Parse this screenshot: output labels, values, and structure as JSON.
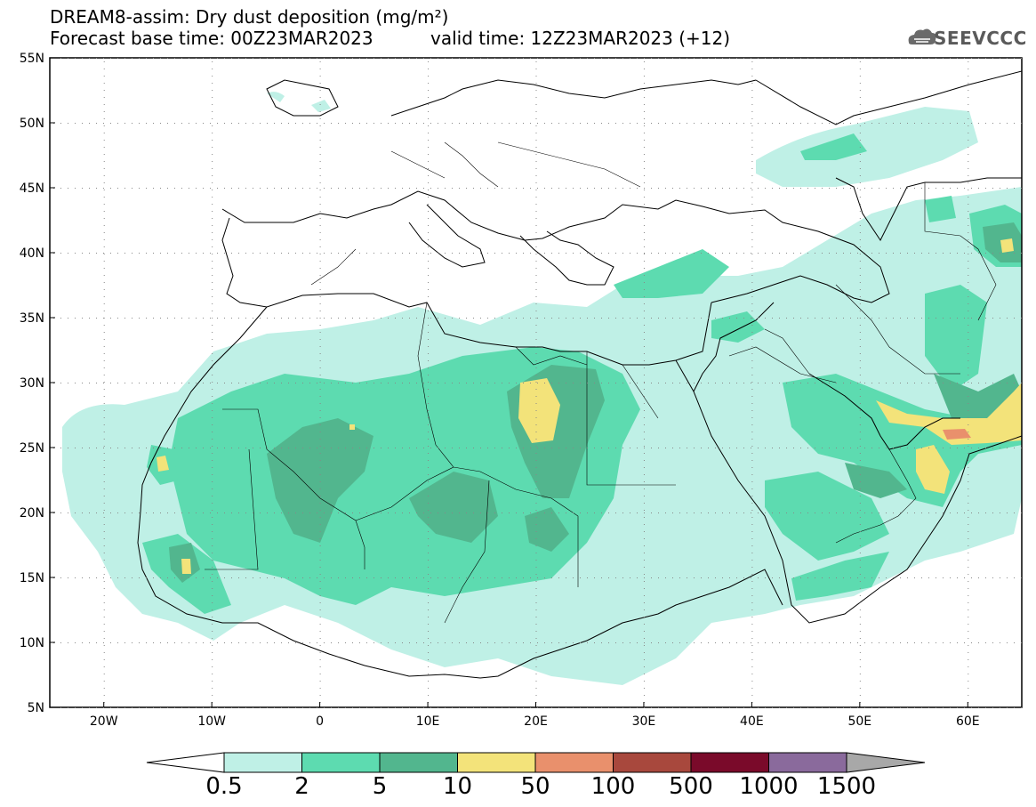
{
  "header": {
    "title": "DREAM8-assim: Dry dust deposition (mg/m²)",
    "base_time": "Forecast base time: 00Z23MAR2023",
    "valid_time": "valid time: 12Z23MAR2023 (+12)",
    "logo_text": "SEEVCCC"
  },
  "map": {
    "lon_ticks": [
      "20W",
      "10W",
      "0",
      "10E",
      "20E",
      "30E",
      "40E",
      "50E",
      "60E"
    ],
    "lat_ticks": [
      "55N",
      "50N",
      "45N",
      "40N",
      "35N",
      "30N",
      "25N",
      "20N",
      "15N",
      "10N",
      "5N"
    ],
    "extent": {
      "lon": [
        -25,
        65
      ],
      "lat": [
        5,
        55
      ]
    }
  },
  "colorbar": {
    "labels": [
      "0.5",
      "2",
      "5",
      "10",
      "50",
      "100",
      "500",
      "1000",
      "1500"
    ],
    "colors": [
      "#bff0e6",
      "#5ddbb0",
      "#52b68e",
      "#f3e37a",
      "#e9906c",
      "#a8483d",
      "#7a0a2a",
      "#8a6a9c"
    ],
    "arrow_low_color": "#ffffff",
    "arrow_high_color": "#a8a8a8"
  },
  "chart_data": {
    "type": "heatmap",
    "title": "DREAM8-assim: Dry dust deposition (mg/m²)",
    "units": "mg/m²",
    "levels": [
      0.5,
      2,
      5,
      10,
      50,
      100,
      500,
      1000,
      1500
    ],
    "xlabel": "",
    "ylabel": "",
    "xlim": [
      -25,
      65
    ],
    "ylim": [
      5,
      55
    ]
  }
}
